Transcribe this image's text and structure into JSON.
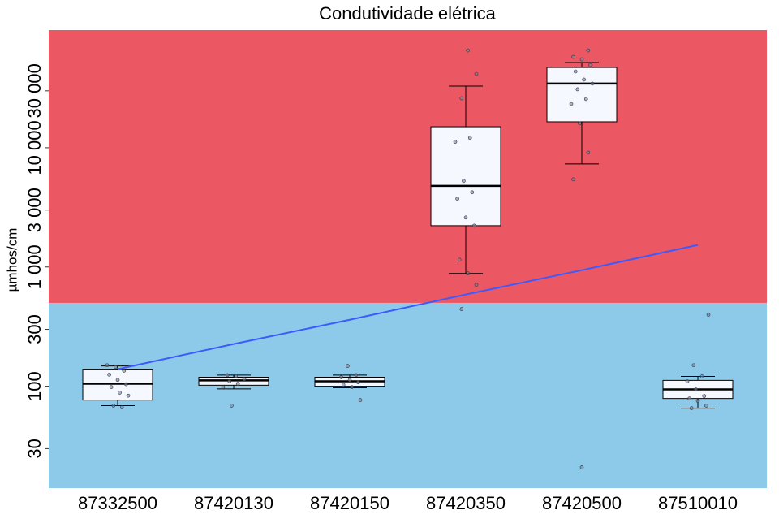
{
  "chart_data": {
    "type": "boxplot",
    "title": "Condutividade elétrica",
    "y_label": "µmhos/cm",
    "log_y": true,
    "ylim": [
      14,
      97000
    ],
    "yticks": [
      30,
      100,
      300,
      {
        "value": 1000,
        "label": "1 000"
      },
      {
        "value": 3000,
        "label": "3 000"
      },
      {
        "value": 10000,
        "label": "10 000"
      },
      {
        "value": 30000,
        "label": "30 000"
      }
    ],
    "threshold": 500,
    "band_colors": {
      "below": "#8DCAEA",
      "above": "#EB5763"
    },
    "box_color": "#F5F8FF",
    "categories": [
      "87332500",
      "87420130",
      "87420150",
      "87420350",
      "87420500",
      "87510010"
    ],
    "stats": {
      "whisker_low": [
        68.7,
        95,
        97,
        883,
        7310,
        65.5
      ],
      "q1": [
        76.6,
        102,
        100,
        2220,
        16500,
        79
      ],
      "median": [
        105,
        112,
        110,
        4790,
        34500,
        94
      ],
      "q3": [
        139,
        119,
        119,
        15000,
        47100,
        112
      ],
      "whisker_high": [
        148,
        124,
        124,
        32900,
        51800,
        121
      ]
    },
    "points": [
      [
        150,
        145,
        135,
        125,
        113,
        104,
        98.4,
        88.4,
        83.4,
        68.7,
        66.5
      ],
      [
        124,
        121,
        115,
        110,
        105,
        98.4,
        68.7
      ],
      [
        148,
        124,
        119,
        113,
        108,
        103,
        98.4,
        76.6
      ],
      [
        65500,
        41600,
        26000,
        12100,
        11200,
        5260,
        4230,
        3730,
        2600,
        2220,
        1150,
        883,
        708,
        443
      ],
      [
        65500,
        57800,
        55100,
        49400,
        43600,
        37300,
        34500,
        30900,
        25600,
        23300,
        16000,
        9100,
        5430,
        20.9
      ],
      [
        397,
        150,
        121,
        110,
        94,
        82.9,
        79,
        75.4,
        68.7,
        65.5
      ]
    ],
    "trend": {
      "color": "#3B5BFF",
      "values": [
        139,
        226,
        361,
        588,
        940,
        1530
      ]
    }
  }
}
